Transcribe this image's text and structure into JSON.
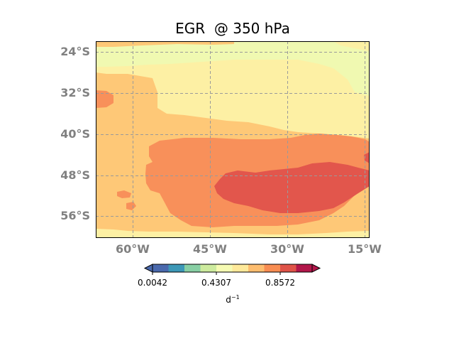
{
  "title": "EGR  @ 350 hPa",
  "map": {
    "lat_labels": [
      "24°S",
      "32°S",
      "40°S",
      "48°S",
      "56°S"
    ],
    "lon_labels": [
      "60°W",
      "45°W",
      "30°W",
      "15°W"
    ],
    "lat_range": [
      -60,
      -21
    ],
    "lon_range": [
      -67,
      -14
    ],
    "gridlines": true,
    "gridline_style": "dashed"
  },
  "colorbar": {
    "colors": [
      "#4a69ad",
      "#3d98b7",
      "#88cfa4",
      "#cdeb9e",
      "#f6fbb3",
      "#fee99a",
      "#fdbd6f",
      "#f88d52",
      "#df5348",
      "#b2174a"
    ],
    "tick_labels": [
      "0.0042",
      "0.4307",
      "0.8572"
    ],
    "unit_base": "d",
    "unit_exp": "−1",
    "extend": "both"
  },
  "field_colors": {
    "light_yellow_green": "#f0f9b1",
    "pale_yellow": "#fdf0a4",
    "light_orange": "#fec877",
    "orange": "#f8905a",
    "red": "#e2564c"
  }
}
